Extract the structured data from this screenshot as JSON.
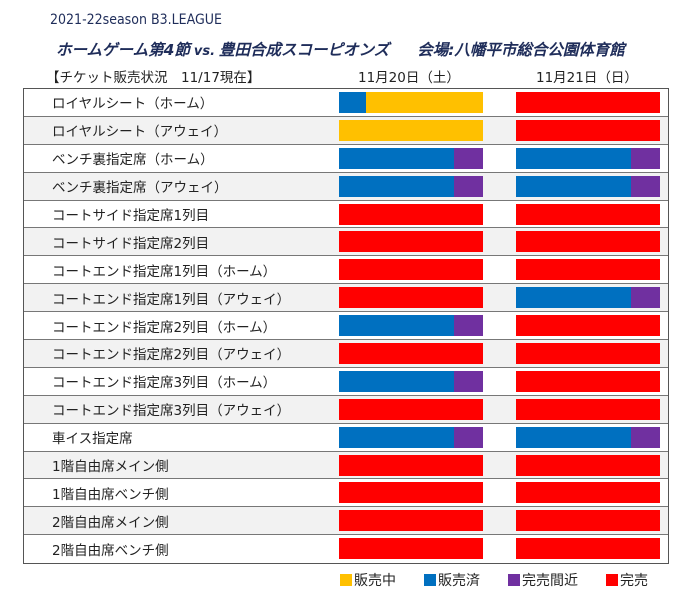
{
  "header": {
    "season": "2021-22season B3.LEAGUE",
    "game": "ホームゲーム第4節",
    "vs": "vs.",
    "opponent": "豊田合成スコーピオンズ",
    "venue": "会場:八幡平市総合公園体育館"
  },
  "table_title": "【チケット販売状況　11/17現在】",
  "dates": [
    "11月20日（土）",
    "11月21日（日）"
  ],
  "colors": {
    "on_sale": "#ffc000",
    "sold": "#0070c0",
    "almost": "#7030a0",
    "soldout": "#ff0000"
  },
  "rows": [
    {
      "label": "ロイヤルシート（ホーム）",
      "day1": [
        [
          "sold",
          0.19
        ],
        [
          "on_sale",
          0.81
        ]
      ],
      "day2": [
        [
          "soldout",
          1
        ]
      ]
    },
    {
      "label": "ロイヤルシート（アウェイ）",
      "day1": [
        [
          "on_sale",
          1
        ]
      ],
      "day2": [
        [
          "soldout",
          1
        ]
      ]
    },
    {
      "label": "ベンチ裏指定席（ホーム）",
      "day1": [
        [
          "sold",
          0.8
        ],
        [
          "almost",
          0.2
        ]
      ],
      "day2": [
        [
          "sold",
          0.8
        ],
        [
          "almost",
          0.2
        ]
      ]
    },
    {
      "label": "ベンチ裏指定席（アウェイ）",
      "day1": [
        [
          "sold",
          0.8
        ],
        [
          "almost",
          0.2
        ]
      ],
      "day2": [
        [
          "sold",
          0.8
        ],
        [
          "almost",
          0.2
        ]
      ]
    },
    {
      "label": "コートサイド指定席1列目",
      "day1": [
        [
          "soldout",
          1
        ]
      ],
      "day2": [
        [
          "soldout",
          1
        ]
      ]
    },
    {
      "label": "コートサイド指定席2列目",
      "day1": [
        [
          "soldout",
          1
        ]
      ],
      "day2": [
        [
          "soldout",
          1
        ]
      ]
    },
    {
      "label": "コートエンド指定席1列目（ホーム）",
      "day1": [
        [
          "soldout",
          1
        ]
      ],
      "day2": [
        [
          "soldout",
          1
        ]
      ]
    },
    {
      "label": "コートエンド指定席1列目（アウェイ）",
      "day1": [
        [
          "soldout",
          1
        ]
      ],
      "day2": [
        [
          "sold",
          0.8
        ],
        [
          "almost",
          0.2
        ]
      ]
    },
    {
      "label": "コートエンド指定席2列目（ホーム）",
      "day1": [
        [
          "sold",
          0.8
        ],
        [
          "almost",
          0.2
        ]
      ],
      "day2": [
        [
          "soldout",
          1
        ]
      ]
    },
    {
      "label": "コートエンド指定席2列目（アウェイ）",
      "day1": [
        [
          "soldout",
          1
        ]
      ],
      "day2": [
        [
          "soldout",
          1
        ]
      ]
    },
    {
      "label": "コートエンド指定席3列目（ホーム）",
      "day1": [
        [
          "sold",
          0.8
        ],
        [
          "almost",
          0.2
        ]
      ],
      "day2": [
        [
          "soldout",
          1
        ]
      ]
    },
    {
      "label": "コートエンド指定席3列目（アウェイ）",
      "day1": [
        [
          "soldout",
          1
        ]
      ],
      "day2": [
        [
          "soldout",
          1
        ]
      ]
    },
    {
      "label": "車イス指定席",
      "day1": [
        [
          "sold",
          0.8
        ],
        [
          "almost",
          0.2
        ]
      ],
      "day2": [
        [
          "sold",
          0.8
        ],
        [
          "almost",
          0.2
        ]
      ]
    },
    {
      "label": "1階自由席メイン側",
      "day1": [
        [
          "soldout",
          1
        ]
      ],
      "day2": [
        [
          "soldout",
          1
        ]
      ]
    },
    {
      "label": "1階自由席ベンチ側",
      "day1": [
        [
          "soldout",
          1
        ]
      ],
      "day2": [
        [
          "soldout",
          1
        ]
      ]
    },
    {
      "label": "2階自由席メイン側",
      "day1": [
        [
          "soldout",
          1
        ]
      ],
      "day2": [
        [
          "soldout",
          1
        ]
      ]
    },
    {
      "label": "2階自由席ベンチ側",
      "day1": [
        [
          "soldout",
          1
        ]
      ],
      "day2": [
        [
          "soldout",
          1
        ]
      ]
    }
  ],
  "legend": [
    {
      "key": "on_sale",
      "label": "販売中"
    },
    {
      "key": "sold",
      "label": "販売済"
    },
    {
      "key": "almost",
      "label": "完売間近"
    },
    {
      "key": "soldout",
      "label": "完売"
    }
  ]
}
